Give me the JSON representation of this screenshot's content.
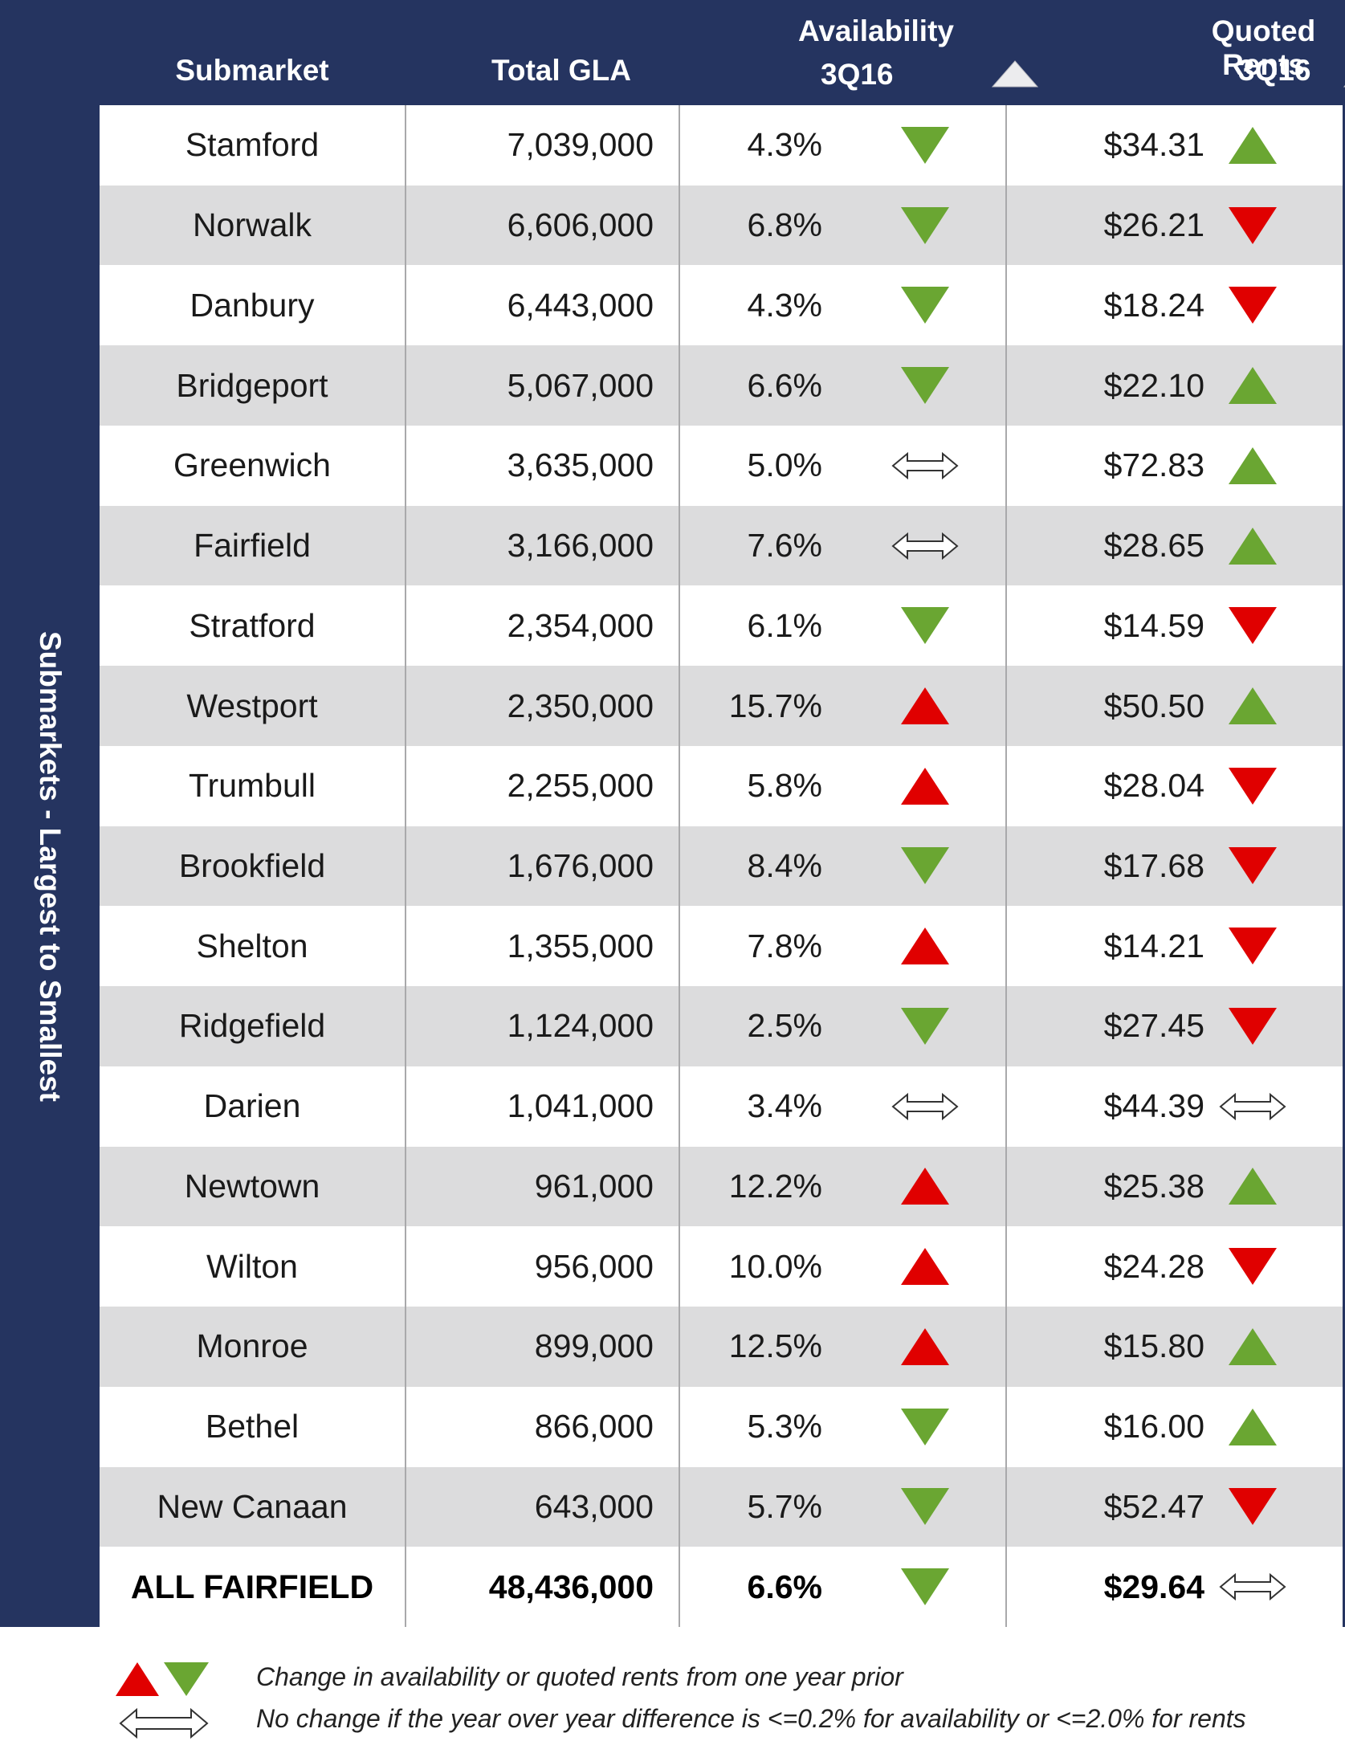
{
  "side_label": "Submarkets - Largest to Smallest",
  "header": {
    "submarket": "Submarket",
    "total_gla": "Total GLA",
    "availability": "Availability",
    "availability_period": "3Q16",
    "rents": "Quoted Rents",
    "rents_period": "3Q16"
  },
  "colors": {
    "navy": "#253460",
    "green": "#6aa632",
    "red": "#e00000",
    "row_shade": "#dcdcdd"
  },
  "rows": [
    {
      "name": "Stamford",
      "gla": "7,039,000",
      "availability": "4.3%",
      "availability_trend": "down-green",
      "rent": "$34.31",
      "rent_trend": "up-green"
    },
    {
      "name": "Norwalk",
      "gla": "6,606,000",
      "availability": "6.8%",
      "availability_trend": "down-green",
      "rent": "$26.21",
      "rent_trend": "down-red"
    },
    {
      "name": "Danbury",
      "gla": "6,443,000",
      "availability": "4.3%",
      "availability_trend": "down-green",
      "rent": "$18.24",
      "rent_trend": "down-red"
    },
    {
      "name": "Bridgeport",
      "gla": "5,067,000",
      "availability": "6.6%",
      "availability_trend": "down-green",
      "rent": "$22.10",
      "rent_trend": "up-green"
    },
    {
      "name": "Greenwich",
      "gla": "3,635,000",
      "availability": "5.0%",
      "availability_trend": "no-change",
      "rent": "$72.83",
      "rent_trend": "up-green"
    },
    {
      "name": "Fairfield",
      "gla": "3,166,000",
      "availability": "7.6%",
      "availability_trend": "no-change",
      "rent": "$28.65",
      "rent_trend": "up-green"
    },
    {
      "name": "Stratford",
      "gla": "2,354,000",
      "availability": "6.1%",
      "availability_trend": "down-green",
      "rent": "$14.59",
      "rent_trend": "down-red"
    },
    {
      "name": "Westport",
      "gla": "2,350,000",
      "availability": "15.7%",
      "availability_trend": "up-red",
      "rent": "$50.50",
      "rent_trend": "up-green"
    },
    {
      "name": "Trumbull",
      "gla": "2,255,000",
      "availability": "5.8%",
      "availability_trend": "up-red",
      "rent": "$28.04",
      "rent_trend": "down-red"
    },
    {
      "name": "Brookfield",
      "gla": "1,676,000",
      "availability": "8.4%",
      "availability_trend": "down-green",
      "rent": "$17.68",
      "rent_trend": "down-red"
    },
    {
      "name": "Shelton",
      "gla": "1,355,000",
      "availability": "7.8%",
      "availability_trend": "up-red",
      "rent": "$14.21",
      "rent_trend": "down-red"
    },
    {
      "name": "Ridgefield",
      "gla": "1,124,000",
      "availability": "2.5%",
      "availability_trend": "down-green",
      "rent": "$27.45",
      "rent_trend": "down-red"
    },
    {
      "name": "Darien",
      "gla": "1,041,000",
      "availability": "3.4%",
      "availability_trend": "no-change",
      "rent": "$44.39",
      "rent_trend": "no-change"
    },
    {
      "name": "Newtown",
      "gla": "961,000",
      "availability": "12.2%",
      "availability_trend": "up-red",
      "rent": "$25.38",
      "rent_trend": "up-green"
    },
    {
      "name": "Wilton",
      "gla": "956,000",
      "availability": "10.0%",
      "availability_trend": "up-red",
      "rent": "$24.28",
      "rent_trend": "down-red"
    },
    {
      "name": "Monroe",
      "gla": "899,000",
      "availability": "12.5%",
      "availability_trend": "up-red",
      "rent": "$15.80",
      "rent_trend": "up-green"
    },
    {
      "name": "Bethel",
      "gla": "866,000",
      "availability": "5.3%",
      "availability_trend": "down-green",
      "rent": "$16.00",
      "rent_trend": "up-green"
    },
    {
      "name": "New Canaan",
      "gla": "643,000",
      "availability": "5.7%",
      "availability_trend": "down-green",
      "rent": "$52.47",
      "rent_trend": "down-red"
    }
  ],
  "total": {
    "name": "ALL FAIRFIELD",
    "gla": "48,436,000",
    "availability": "6.6%",
    "availability_trend": "down-green",
    "rent": "$29.64",
    "rent_trend": "no-change"
  },
  "legend": {
    "change_text": "Change in availability or quoted rents from one year prior",
    "no_change_text": "No change if the year over year difference is <=0.2% for availability or <=2.0% for rents"
  }
}
